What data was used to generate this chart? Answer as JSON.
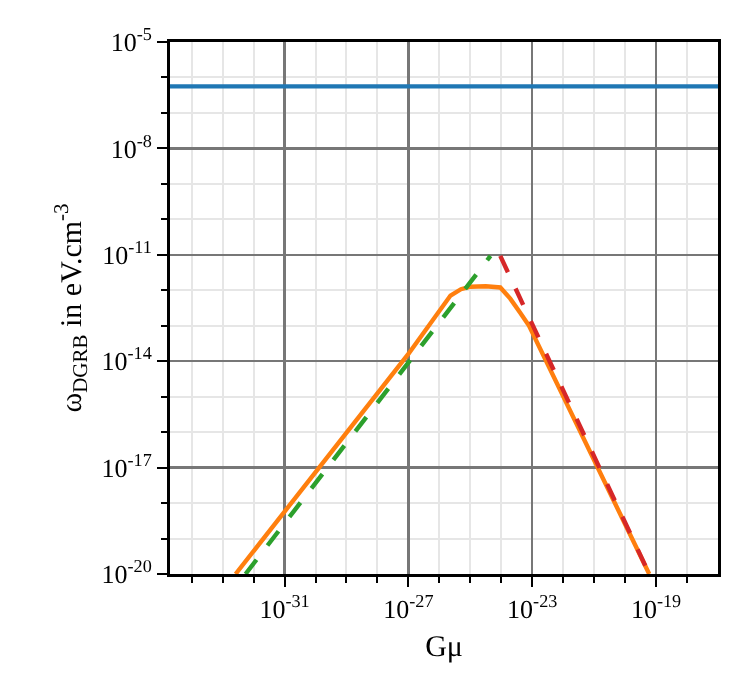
{
  "chart_data": {
    "type": "line",
    "xlabel": "Gμ",
    "ylabel": "ω$_{DGRB}$ in eV.cm$^{-3}$",
    "log": "xy",
    "grid": true,
    "xlim": [
      2e-35,
      1e-17
    ],
    "ylim": [
      1e-20,
      1e-05
    ],
    "xticks": [
      {
        "value": 1e-34,
        "label": null
      },
      {
        "value": 1e-33,
        "label": null
      },
      {
        "value": 1e-32,
        "label": null
      },
      {
        "value": 1e-31,
        "label": "10$^{-31}$"
      },
      {
        "value": 1e-30,
        "label": null
      },
      {
        "value": 1e-29,
        "label": null
      },
      {
        "value": 1e-28,
        "label": null
      },
      {
        "value": 1e-27,
        "label": "10$^{-27}$"
      },
      {
        "value": 1e-26,
        "label": null
      },
      {
        "value": 1e-25,
        "label": null
      },
      {
        "value": 1e-24,
        "label": null
      },
      {
        "value": 1e-23,
        "label": "10$^{-23}$"
      },
      {
        "value": 1e-22,
        "label": null
      },
      {
        "value": 1e-21,
        "label": null
      },
      {
        "value": 1e-20,
        "label": null
      },
      {
        "value": 1e-19,
        "label": "10$^{-19}$"
      },
      {
        "value": 1e-18,
        "label": null
      }
    ],
    "yticks": [
      {
        "value": 1e-20,
        "label": "10$^{-20}$"
      },
      {
        "value": 1e-19,
        "label": null
      },
      {
        "value": 1e-18,
        "label": null
      },
      {
        "value": 1e-17,
        "label": "10$^{-17}$"
      },
      {
        "value": 1e-16,
        "label": null
      },
      {
        "value": 1e-15,
        "label": null
      },
      {
        "value": 1e-14,
        "label": "10$^{-14}$"
      },
      {
        "value": 1e-13,
        "label": null
      },
      {
        "value": 1e-12,
        "label": null
      },
      {
        "value": 1e-11,
        "label": "10$^{-11}$"
      },
      {
        "value": 1e-10,
        "label": null
      },
      {
        "value": 1e-09,
        "label": null
      },
      {
        "value": 1e-08,
        "label": "10$^{-8}$"
      },
      {
        "value": 1e-07,
        "label": null
      },
      {
        "value": 1e-06,
        "label": null
      },
      {
        "value": 1e-05,
        "label": "10$^{-5}$"
      }
    ],
    "series": [
      {
        "color": "#1f77b4",
        "line_style": "solid",
        "x": [
          2e-35,
          1e-17
        ],
        "values": [
          5.6e-07,
          5.6e-07
        ]
      },
      {
        "color": "#ff7f0e",
        "line_style": "solid",
        "x": [
          2.63e-33,
          1e-27,
          2.29e-26,
          5e-26,
          1e-25,
          3.16e-25,
          9.3e-25,
          1.95e-24,
          3.98e-24,
          7.9e-24,
          6e-20
        ],
        "values": [
          1e-20,
          1.6e-14,
          7.1e-13,
          1.07e-12,
          1.26e-12,
          1.3e-12,
          1.2e-12,
          5.8e-13,
          2.4e-13,
          1e-13,
          1e-20
        ]
      },
      {
        "color": "#2ca02c",
        "line_style": "dashed",
        "x": [
          5.5e-33,
          4.5e-25
        ],
        "values": [
          1e-20,
          9.3e-12
        ]
      },
      {
        "color": "#d62728",
        "line_style": "dashed",
        "x": [
          9.3e-25,
          6e-20
        ],
        "values": [
          9.3e-12,
          1e-20
        ]
      }
    ]
  }
}
